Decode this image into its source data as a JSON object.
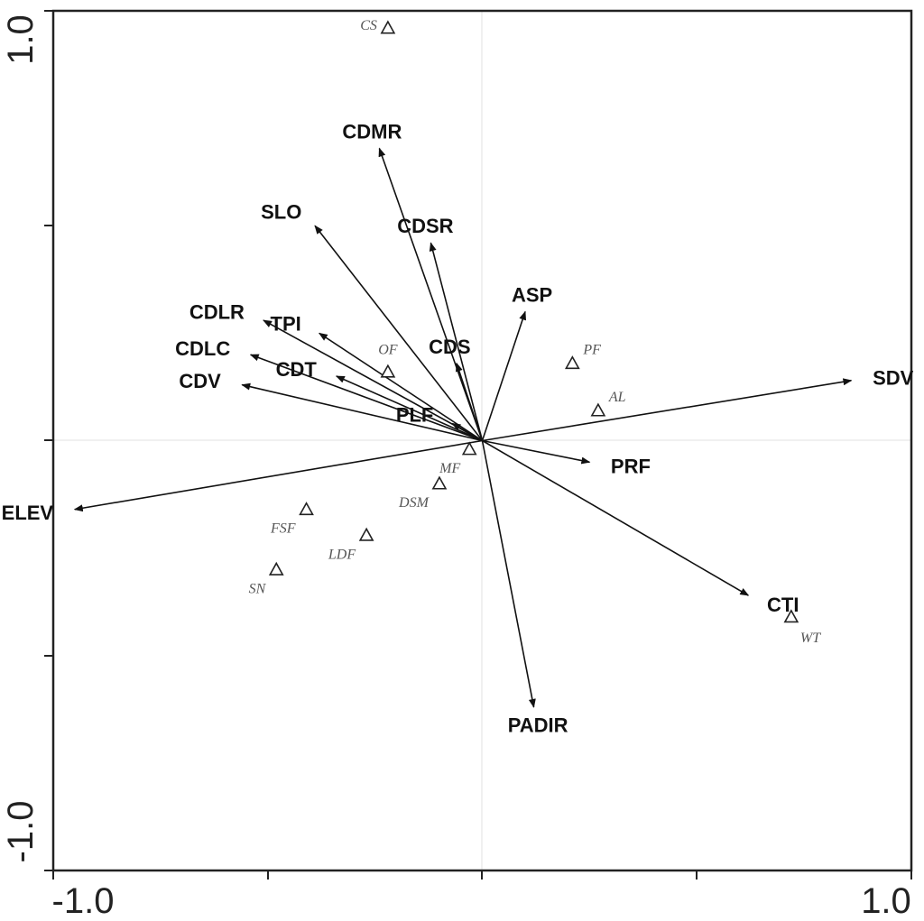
{
  "chart_data": {
    "type": "scatter",
    "title": "",
    "xlabel": "",
    "ylabel": "",
    "xlim": [
      -1.0,
      1.0
    ],
    "ylim": [
      -1.0,
      1.0
    ],
    "x_tick_labels": [
      "-1.0",
      "1.0"
    ],
    "y_tick_labels": [
      "-1.0",
      "1.0"
    ],
    "grid": false,
    "origin_guides": true,
    "arrow_series": {
      "marker": "arrow",
      "points": [
        {
          "label": "CDMR",
          "x": -0.24,
          "y": 0.68
        },
        {
          "label": "SLO",
          "x": -0.39,
          "y": 0.5
        },
        {
          "label": "CDSR",
          "x": -0.12,
          "y": 0.46
        },
        {
          "label": "ASP",
          "x": 0.1,
          "y": 0.3
        },
        {
          "label": "CDLR",
          "x": -0.51,
          "y": 0.28
        },
        {
          "label": "TPI",
          "x": -0.38,
          "y": 0.25
        },
        {
          "label": "CDLC",
          "x": -0.54,
          "y": 0.2
        },
        {
          "label": "CDT",
          "x": -0.34,
          "y": 0.15
        },
        {
          "label": "CDS",
          "x": -0.06,
          "y": 0.18
        },
        {
          "label": "CDV",
          "x": -0.56,
          "y": 0.13
        },
        {
          "label": "PLF",
          "x": -0.07,
          "y": 0.04
        },
        {
          "label": "SDV",
          "x": 0.86,
          "y": 0.14
        },
        {
          "label": "PRF",
          "x": 0.25,
          "y": -0.05
        },
        {
          "label": "ELEV",
          "x": -0.95,
          "y": -0.16
        },
        {
          "label": "CTI",
          "x": 0.62,
          "y": -0.36
        },
        {
          "label": "PADIR",
          "x": 0.12,
          "y": -0.62
        }
      ]
    },
    "site_series": {
      "marker": "triangle",
      "points": [
        {
          "label": "CS",
          "x": -0.22,
          "y": 0.96
        },
        {
          "label": "OF",
          "x": -0.22,
          "y": 0.16
        },
        {
          "label": "PF",
          "x": 0.21,
          "y": 0.18
        },
        {
          "label": "AL",
          "x": 0.27,
          "y": 0.07
        },
        {
          "label": "MF",
          "x": -0.03,
          "y": -0.02
        },
        {
          "label": "DSM",
          "x": -0.1,
          "y": -0.1
        },
        {
          "label": "FSF",
          "x": -0.41,
          "y": -0.16
        },
        {
          "label": "LDF",
          "x": -0.27,
          "y": -0.22
        },
        {
          "label": "SN",
          "x": -0.48,
          "y": -0.3
        },
        {
          "label": "WT",
          "x": 0.72,
          "y": -0.41
        }
      ]
    }
  }
}
